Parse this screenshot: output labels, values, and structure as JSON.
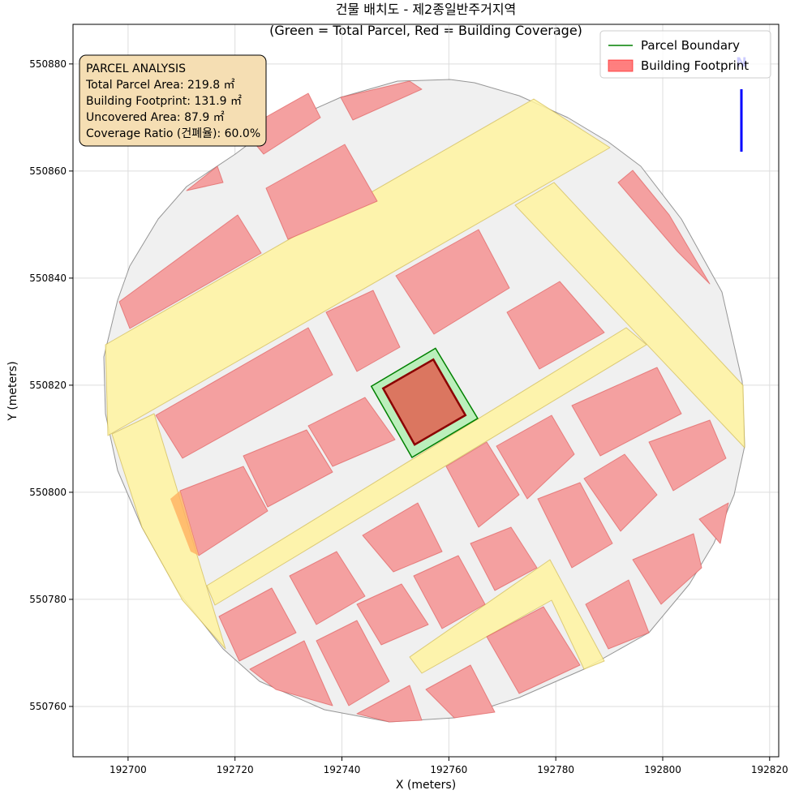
{
  "chart_data": {
    "type": "map",
    "title": "건물 배치도 - 제2종일반주거지역",
    "subtitle": "(Green = Total Parcel, Red = Building Coverage)",
    "xlabel": "X (meters)",
    "ylabel": "Y (meters)",
    "xlim": [
      192689.7,
      192821.7
    ],
    "ylim": [
      550750.6,
      550887.4
    ],
    "xticks": [
      192700,
      192720,
      192740,
      192760,
      192780,
      192800,
      192820
    ],
    "yticks": [
      550760,
      550780,
      550800,
      550820,
      550840,
      550860,
      550880
    ],
    "grid": true,
    "legend_position": "upper right",
    "north_label": "N",
    "series": [
      {
        "name": "Parcel Boundary",
        "color": "#008000",
        "fill": "#90ee90",
        "x": [
          192745.5,
          192757.5,
          192765.4,
          192753.1
        ],
        "y": [
          550819.8,
          550826.9,
          550813.8,
          550806.5
        ]
      },
      {
        "name": "Building Footprint",
        "color": "#8b0000",
        "fill": "#e06050",
        "x": [
          192747.7,
          192757.1,
          192763.1,
          192753.6
        ],
        "y": [
          550819.4,
          550824.8,
          550814.4,
          550808.9
        ]
      }
    ],
    "annotation": [
      "PARCEL ANALYSIS",
      "Total Parcel Area: 219.8 ㎡",
      "Building Footprint: 131.9 ㎡",
      "Uncovered Area: 87.9 ㎡",
      "Coverage Ratio (건폐율): 60.0%"
    ]
  }
}
